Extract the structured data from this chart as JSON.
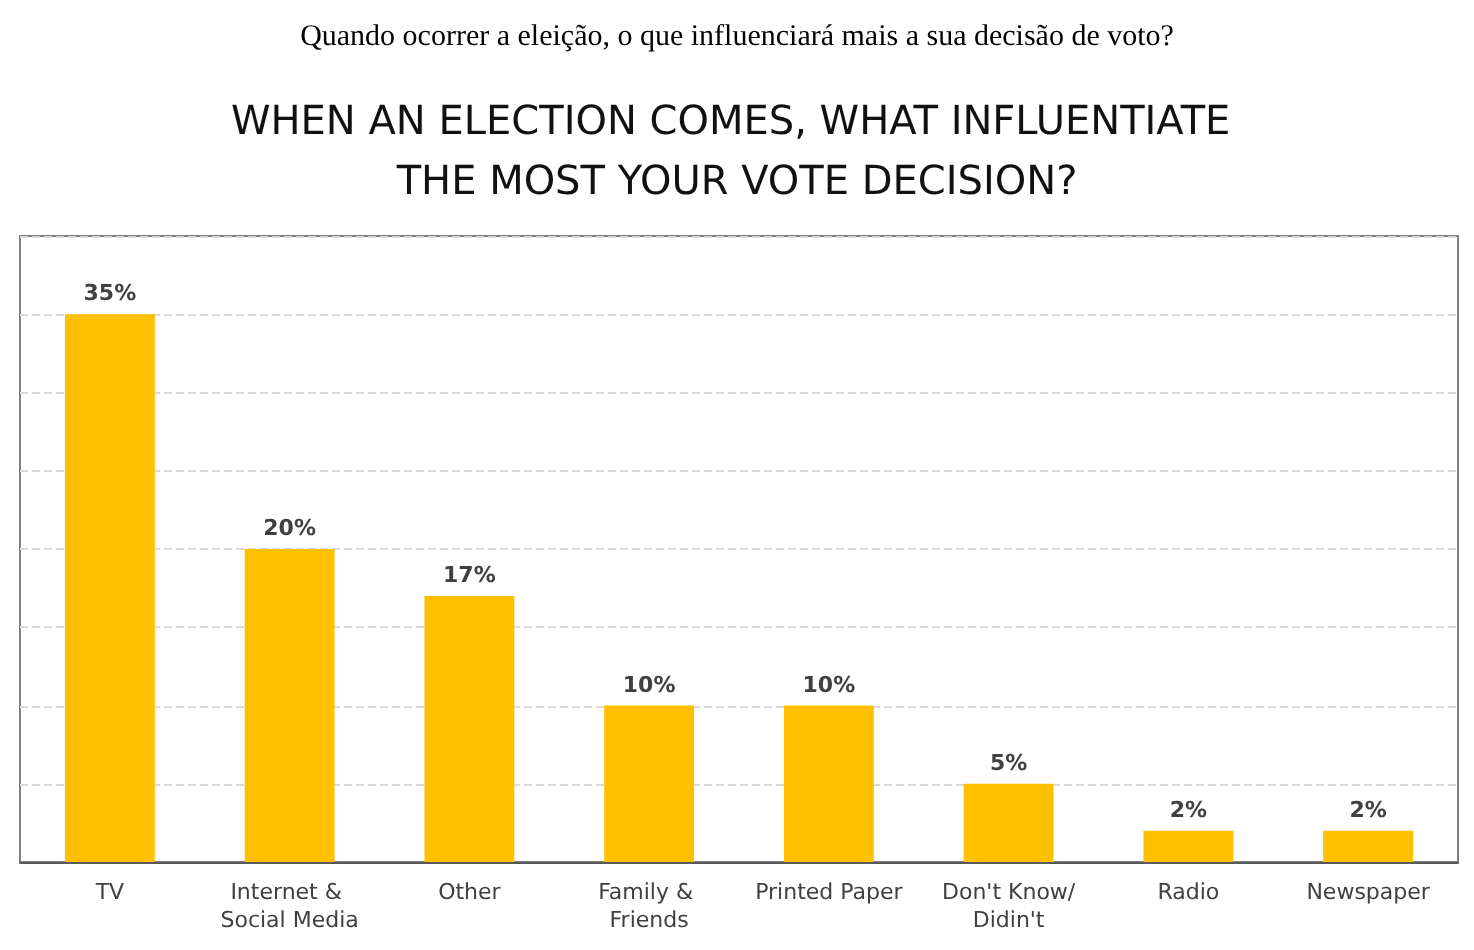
{
  "chart_data": {
    "type": "bar",
    "subtitle": "Quando ocorrer a eleição, o que influenciará mais a sua decisão de voto?",
    "title": "WHEN AN ELECTION COMES, WHAT INFLUENTIATE THE MOST YOUR VOTE DECISION?",
    "categories": [
      "TV",
      "Internet & Social Media",
      "Other",
      "Family & Friends",
      "Printed Paper",
      "Don't Know/Didin't",
      "Radio",
      "Newspaper"
    ],
    "values": [
      35,
      20,
      17,
      10,
      10,
      5,
      2,
      2
    ],
    "value_labels": [
      "35%",
      "20%",
      "17%",
      "10%",
      "10%",
      "5%",
      "2%",
      "2%"
    ],
    "color": "#ffc000",
    "ylim": [
      0,
      40
    ],
    "yticks": [
      {
        "value": 0,
        "label": null
      },
      {
        "value": 5,
        "label": null
      },
      {
        "value": 10,
        "label": null
      },
      {
        "value": 15,
        "label": null
      },
      {
        "value": 20,
        "label": null
      },
      {
        "value": 25,
        "label": null
      },
      {
        "value": 30,
        "label": null
      },
      {
        "value": 35,
        "label": null
      },
      {
        "value": 40,
        "label": null
      }
    ],
    "grid": "y",
    "tick_labels": "x"
  }
}
